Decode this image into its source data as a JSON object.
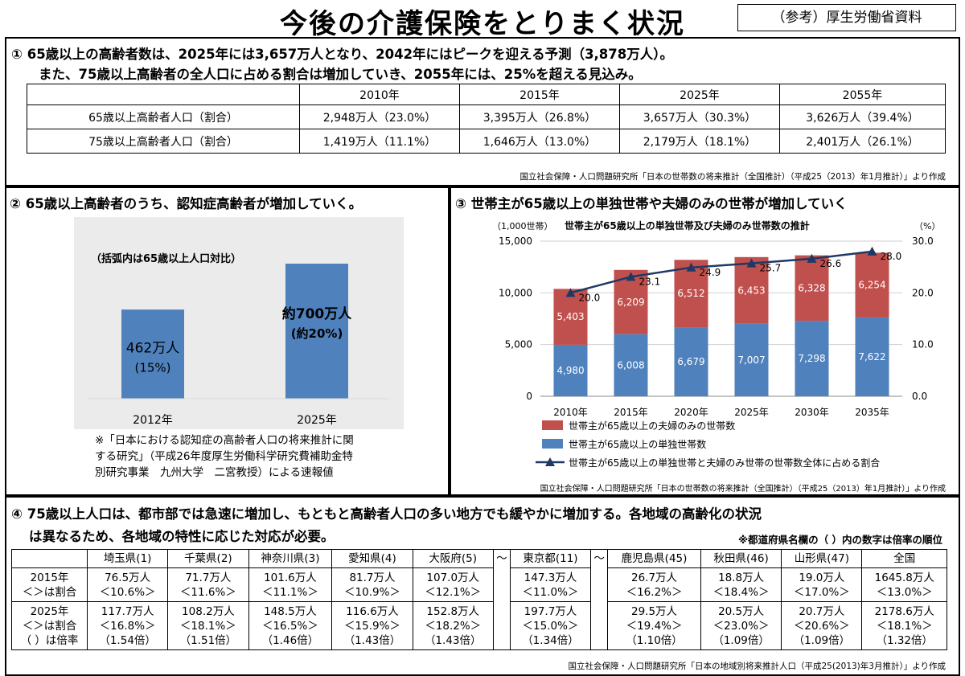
{
  "title": "今後の介護保険をとりまく状況",
  "reference": "（参考）厚生労働省資料",
  "section1": {
    "title_line1": "① 65歳以上の高齢者数は、2025年には3,657万人となり、2042年にはピークを迎える予測（3,878万人）。",
    "title_line2": "また、75歳以上高齢者の全人口に占める割合は増加していき、2055年には、25%を超える見込み。",
    "headers": [
      "",
      "2010年",
      "2015年",
      "2025年",
      "2055年"
    ],
    "rows": [
      {
        "label": "65歳以上高齢者人口（割合）",
        "cells": [
          "2,948万人（23.0%）",
          "3,395万人（26.8%）",
          "3,657万人（30.3%）",
          "3,626万人（39.4%）"
        ]
      },
      {
        "label": "75歳以上高齢者人口（割合）",
        "cells": [
          "1,419万人（11.1%）",
          "1,646万人（13.0%）",
          "2,179万人（18.1%）",
          "2,401万人（26.1%）"
        ]
      }
    ],
    "source": "国立社会保障・人口問題研究所「日本の世帯数の将来推計（全国推計）（平成25（2013）年1月推計）」より作成"
  },
  "section2": {
    "title": "② 65歳以上高齢者のうち、認知症高齢者が増加していく。",
    "note": "（括弧内は65歳以上人口対比）",
    "footnote_line1": "※「日本における認知症の高齢者人口の将来推計に関",
    "footnote_line2": "する研究」（平成26年度厚生労働科学研究費補助金特",
    "footnote_line3": "別研究事業　九州大学　二宮教授）による速報値"
  },
  "section3": {
    "title": "③ 世帯主が65歳以上の単独世帯や夫婦のみの世帯が増加していく",
    "source": "国立社会保障・人口問題研究所「日本の世帯数の将来推計（全国推計）（平成25（2013）年1月推計）」より作成"
  },
  "section4": {
    "title_line1": "④ 75歳以上人口は、都市部では急速に増加し、もともと高齢者人口の多い地方でも緩やかに増加する。各地域の高齢化の状況",
    "title_line2": "は異なるため、各地域の特性に応じた対応が必要。",
    "note": "※都道府県名欄の（ ）内の数字は倍率の順位",
    "headers": [
      "埼玉県(1)",
      "千葉県(2)",
      "神奈川県(3)",
      "愛知県(4)",
      "大阪府(5)",
      "〜",
      "東京都(11)",
      "〜",
      "鹿児島県(45)",
      "秋田県(46)",
      "山形県(47)",
      "全国"
    ],
    "row2015_label": [
      "2015年",
      "＜＞は割合"
    ],
    "row2015": [
      [
        "76.5万人",
        "＜10.6%＞"
      ],
      [
        "71.7万人",
        "＜11.6%＞"
      ],
      [
        "101.6万人",
        "＜11.1%＞"
      ],
      [
        "81.7万人",
        "＜10.9%＞"
      ],
      [
        "107.0万人",
        "＜12.1%＞"
      ],
      [
        "147.3万人",
        "＜11.0%＞"
      ],
      [
        "26.7万人",
        "＜16.2%＞"
      ],
      [
        "18.8万人",
        "＜18.4%＞"
      ],
      [
        "19.0万人",
        "＜17.0%＞"
      ],
      [
        "1645.8万人",
        "＜13.0%＞"
      ]
    ],
    "row2025_label": [
      "2025年",
      "＜＞は割合",
      "（ ）は倍率"
    ],
    "row2025": [
      [
        "117.7万人",
        "＜16.8%＞",
        "（1.54倍）"
      ],
      [
        "108.2万人",
        "＜18.1%＞",
        "（1.51倍）"
      ],
      [
        "148.5万人",
        "＜16.5%＞",
        "（1.46倍）"
      ],
      [
        "116.6万人",
        "＜15.9%＞",
        "（1.43倍）"
      ],
      [
        "152.8万人",
        "＜18.2%＞",
        "（1.43倍）"
      ],
      [
        "197.7万人",
        "＜15.0%＞",
        "（1.34倍）"
      ],
      [
        "29.5万人",
        "＜19.4%＞",
        "（1.10倍）"
      ],
      [
        "20.5万人",
        "＜23.0%＞",
        "（1.09倍）"
      ],
      [
        "20.7万人",
        "＜20.6%＞",
        "（1.09倍）"
      ],
      [
        "2178.6万人",
        "＜18.1%＞",
        "（1.32倍）"
      ]
    ],
    "source": "国立社会保障・人口問題研究所「日本の地域別将来推計人口（平成25(2013)年3月推計）」より作成"
  },
  "chart_data": [
    {
      "type": "bar",
      "categories": [
        "2012年",
        "2025年"
      ],
      "values": [
        462,
        700
      ],
      "value_labels": [
        "462万人",
        "約700万人"
      ],
      "share_labels": [
        "(15%)",
        "(約20%)"
      ],
      "bar_color": "#4f81bd",
      "background": "#ebebeb"
    },
    {
      "type": "bar",
      "stacked": true,
      "title": "世帯主が65歳以上の単独世帯及び夫婦のみ世帯数の推計",
      "ylabel_left": "（1,000世帯）",
      "ylabel_right": "（%）",
      "categories": [
        "2010年",
        "2015年",
        "2020年",
        "2025年",
        "2030年",
        "2035年"
      ],
      "ylim_left": [
        0,
        15000
      ],
      "left_ticks": [
        "0",
        "5,000",
        "10,000",
        "15,000"
      ],
      "ylim_right": [
        0,
        30
      ],
      "right_ticks": [
        "0.0",
        "10.0",
        "20.0",
        "30.0"
      ],
      "grid": true,
      "legend_position": "bottom",
      "series": [
        {
          "name": "世帯主が65歳以上の単独世帯数",
          "kind": "bar",
          "color": "#4f81bd",
          "values": [
            4980,
            6008,
            6679,
            7007,
            7298,
            7622
          ],
          "labels": [
            "4,980",
            "6,008",
            "6,679",
            "7,007",
            "7,298",
            "7,622"
          ]
        },
        {
          "name": "世帯主が65歳以上の夫婦のみの世帯数",
          "kind": "bar",
          "color": "#c0504d",
          "values": [
            5403,
            6209,
            6512,
            6453,
            6328,
            6254
          ],
          "labels": [
            "5,403",
            "6,209",
            "6,512",
            "6,453",
            "6,328",
            "6,254"
          ]
        },
        {
          "name": "世帯主が65歳以上の単独世帯と夫婦のみ世帯の世帯数全体に占める割合",
          "kind": "line",
          "axis": "right",
          "color": "#1f3864",
          "values": [
            20.0,
            23.1,
            24.9,
            25.7,
            26.6,
            28.0
          ],
          "labels": [
            "20.0",
            "23.1",
            "24.9",
            "25.7",
            "26.6",
            "28.0"
          ]
        }
      ]
    }
  ]
}
